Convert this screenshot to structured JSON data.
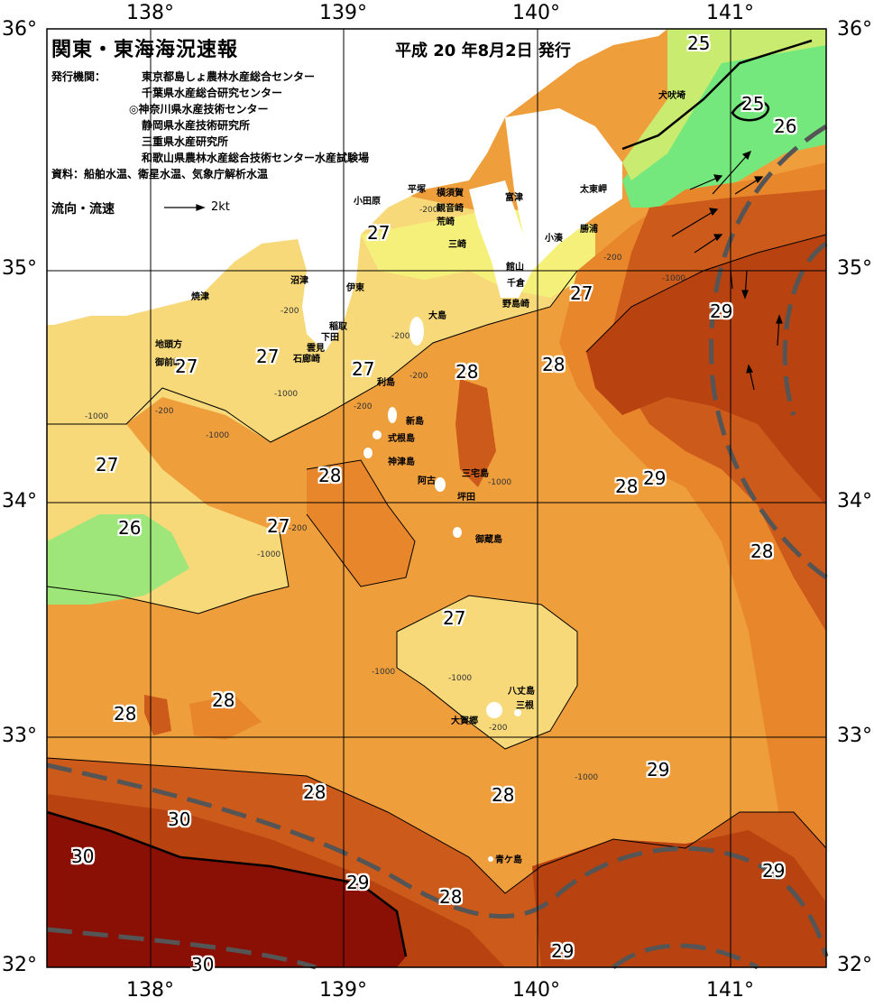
{
  "title": "関東・東海海況速報",
  "date": "平成 20 年8月2日 発行",
  "publisher_label": "発行機関：",
  "publishers": [
    "東京都島しょ農林水産総合センター",
    "千葉県水産総合研究センター",
    "◎神奈川県水産技術センター",
    "静岡県水産技術研究所",
    "三重県水産研究所",
    "和歌山県農林水産総合技術センター水産試験場"
  ],
  "sources": "資料：船舶水温、衛星水温、気象庁解析水温",
  "legend": {
    "label": "流向・流速",
    "scale": "2kt"
  },
  "axes": {
    "lon_labels": [
      "138°",
      "139°",
      "140°",
      "141°"
    ],
    "lat_labels": [
      "36°",
      "35°",
      "34°",
      "33°",
      "32°"
    ]
  },
  "places": [
    "犬吠埼",
    "太東岬",
    "勝浦",
    "小湊",
    "富津",
    "横須賀",
    "観音崎",
    "荒崎",
    "平塚",
    "小田原",
    "三崎",
    "館山",
    "千倉",
    "野島崎",
    "沼津",
    "伊東",
    "稲取",
    "下田",
    "雲見",
    "石廊崎",
    "焼津",
    "地頭方",
    "御前崎",
    "大島",
    "利島",
    "新島",
    "式根島",
    "神津島",
    "三宅島",
    "阿古",
    "坪田",
    "御蔵島",
    "八丈島",
    "三根",
    "大賀郷",
    "青ケ島"
  ],
  "temps": [
    "25",
    "25",
    "26",
    "27",
    "27",
    "29",
    "27",
    "27",
    "27",
    "28",
    "28",
    "28",
    "29",
    "27",
    "26",
    "28",
    "27",
    "28",
    "28",
    "27",
    "28",
    "28",
    "28",
    "29",
    "30",
    "30",
    "29",
    "28",
    "29",
    "29",
    "30"
  ],
  "depths": [
    "-200",
    "-200",
    "-200",
    "-200",
    "-200",
    "-200",
    "-200",
    "-1000",
    "-1000",
    "-1000",
    "-1000",
    "-1000",
    "-1000",
    "-1000",
    "-1000",
    "-1000",
    "-200",
    "-200"
  ],
  "colors": {
    "t25": "#74e87c",
    "t26": "#c9ec70",
    "t26b": "#f4f07a",
    "t27": "#f7d97a",
    "t27b": "#f5bd5c",
    "t28": "#ef9e3c",
    "t28b": "#e8862c",
    "t29": "#cc5a1a",
    "t29b": "#b84210",
    "t30": "#8a1005",
    "land": "#ffffff",
    "kuroshio": "#555555"
  }
}
